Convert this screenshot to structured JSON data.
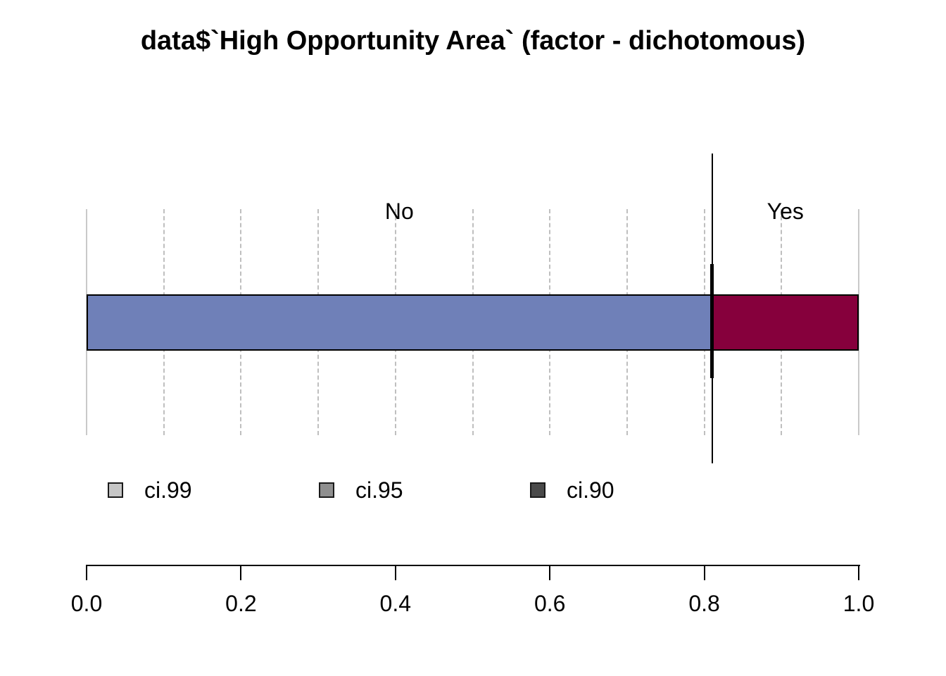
{
  "chart_data": {
    "type": "bar",
    "subtype": "stacked-proportion",
    "orientation": "horizontal",
    "title": "data$`High Opportunity Area` (factor - dichotomous)",
    "categories": [
      "No",
      "Yes"
    ],
    "values": [
      0.81,
      0.19
    ],
    "xlim": [
      0,
      1
    ],
    "x_ticks": [
      {
        "value": 0.0,
        "label": "0.0"
      },
      {
        "value": 0.2,
        "label": "0.2"
      },
      {
        "value": 0.4,
        "label": "0.4"
      },
      {
        "value": 0.6,
        "label": "0.6"
      },
      {
        "value": 0.8,
        "label": "0.8"
      },
      {
        "value": 1.0,
        "label": "1.0"
      }
    ],
    "grid": true,
    "gridline_step": 0.1,
    "ci_marker": {
      "x": 0.81,
      "levels": [
        "ci.99",
        "ci.95",
        "ci.90"
      ]
    },
    "legend": {
      "position": "bottom",
      "entries": [
        {
          "label": "ci.99",
          "color": "#c6c6c6"
        },
        {
          "label": "ci.95",
          "color": "#8f8f8f"
        },
        {
          "label": "ci.90",
          "color": "#4a4a4a"
        }
      ]
    },
    "colors": {
      "segment_no": "#6f80b8",
      "segment_yes": "#86003c",
      "ci_line": "#000000",
      "gridline": "#bfbfbf",
      "axis": "#000000",
      "background": "#ffffff"
    }
  }
}
